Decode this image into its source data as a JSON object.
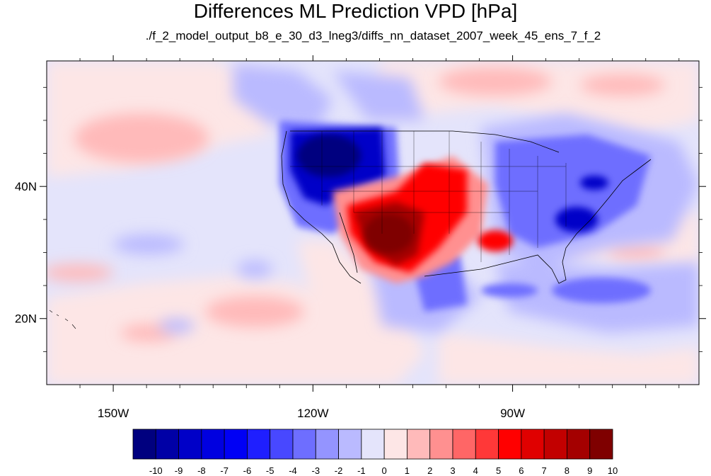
{
  "title": "Differences ML Prediction VPD [hPa]",
  "subtitle": "./f_2_model_output_b8_e_30_d3_lneg3/diffs_nn_dataset_2007_week_45_ens_7_f_2",
  "map": {
    "lon_range": [
      -160,
      -62
    ],
    "lat_range": [
      10,
      59
    ],
    "x_ticks": [
      {
        "lon": -150,
        "label": "150W"
      },
      {
        "lon": -120,
        "label": "120W"
      },
      {
        "lon": -90,
        "label": "90W"
      }
    ],
    "y_ticks": [
      {
        "lat": 40,
        "label": "40N"
      },
      {
        "lat": 20,
        "label": "20N"
      }
    ]
  },
  "colorbar": {
    "labels": [
      "-10",
      "-9",
      "-8",
      "-7",
      "-6",
      "-5",
      "-4",
      "-3",
      "-2",
      "-1",
      "0",
      "1",
      "2",
      "3",
      "4",
      "5",
      "6",
      "7",
      "8",
      "9",
      "10"
    ],
    "colors": [
      "#00007f",
      "#0000a6",
      "#0000c8",
      "#0000e0",
      "#0000f5",
      "#1f1fff",
      "#4848ff",
      "#6e6eff",
      "#9494ff",
      "#babaff",
      "#e4e4fb",
      "#fde6e6",
      "#ffbaba",
      "#ff9090",
      "#ff6666",
      "#ff3838",
      "#ff0000",
      "#e00000",
      "#c20000",
      "#a40000",
      "#7f0000"
    ]
  }
}
